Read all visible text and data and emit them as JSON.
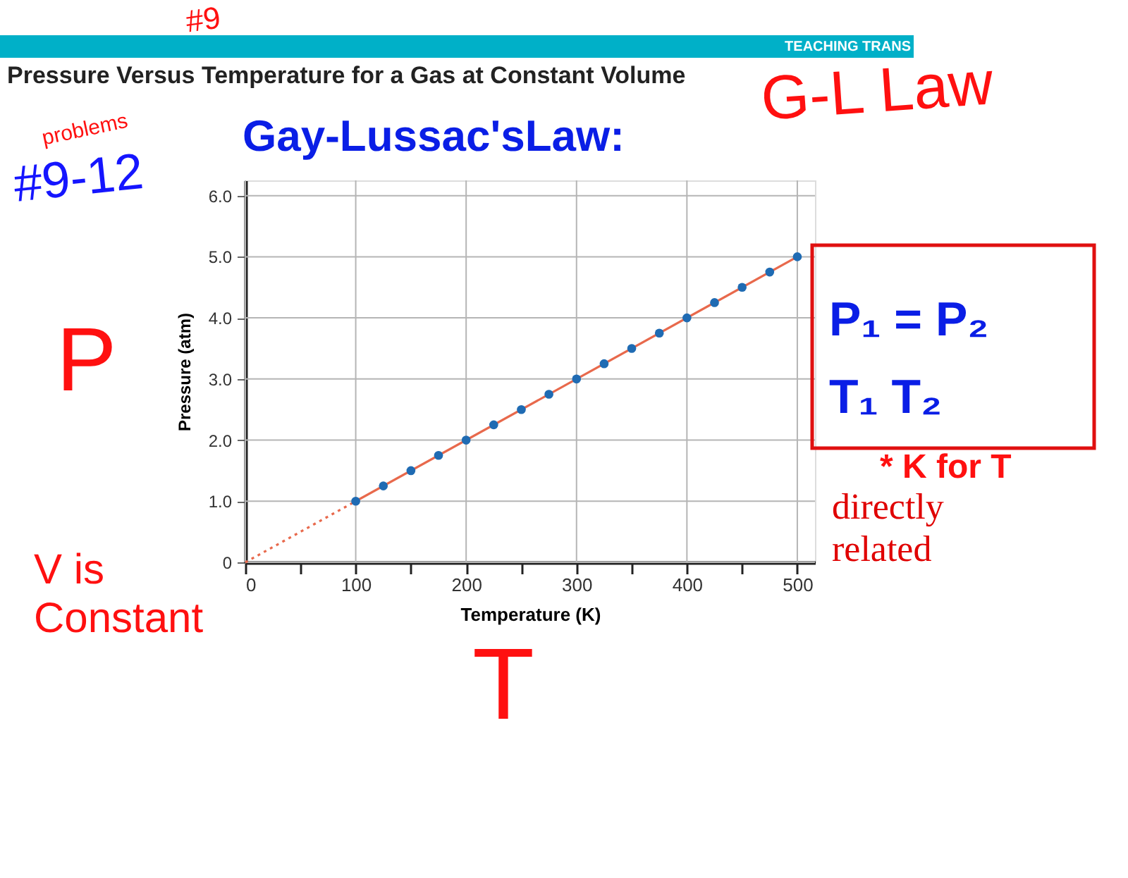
{
  "chart_data": {
    "type": "scatter",
    "title": "Pressure Versus Temperature for a Gas at Constant Volume",
    "subtitle": "Gay-Lussac'sLaw:",
    "xlabel": "Temperature (K)",
    "ylabel": "Pressure (atm)",
    "series": [
      {
        "type": "line",
        "color": "#e8694c",
        "line_style": "solid",
        "x": [
          100,
          500
        ],
        "values": [
          1.0,
          5.0
        ]
      },
      {
        "type": "line",
        "color": "#e8694c",
        "line_style": "dotted",
        "x": [
          0,
          100
        ],
        "values": [
          0,
          1.0
        ]
      },
      {
        "color": "#1f6bb3",
        "marker": "circle",
        "x": [
          100,
          125,
          150,
          175,
          200,
          225,
          250,
          275,
          300,
          325,
          350,
          375,
          400,
          425,
          450,
          475,
          500
        ],
        "values": [
          1.0,
          1.25,
          1.5,
          1.75,
          2.0,
          2.25,
          2.5,
          2.75,
          3.0,
          3.25,
          3.5,
          3.75,
          4.0,
          4.25,
          4.5,
          4.75,
          5.0
        ]
      }
    ],
    "xlim": [
      0,
      516
    ],
    "ylim": [
      0,
      6.25
    ],
    "xticks": [
      0,
      {
        "value": 50,
        "label": null
      },
      100,
      {
        "value": 150,
        "label": null
      },
      200,
      {
        "value": 250,
        "label": null
      },
      300,
      {
        "value": 350,
        "label": null
      },
      400,
      {
        "value": 450,
        "label": null
      },
      500
    ],
    "yticks": [
      0,
      {
        "value": 1,
        "label": "1.0"
      },
      {
        "value": 2,
        "label": "2.0"
      },
      {
        "value": 3,
        "label": "3.0"
      },
      {
        "value": 4,
        "label": "4.0"
      },
      {
        "value": 5,
        "label": "5.0"
      },
      {
        "value": 6,
        "label": "6.0"
      }
    ],
    "grid": true,
    "annotations": [
      "TEACHING TRANS",
      "#9",
      "problems",
      "#9-12",
      "G-L Law",
      "P",
      "V is\nConstant",
      "T",
      "P₁ = P₂",
      "T₁    T₂",
      "* K for T",
      "directly\nrelated"
    ]
  }
}
